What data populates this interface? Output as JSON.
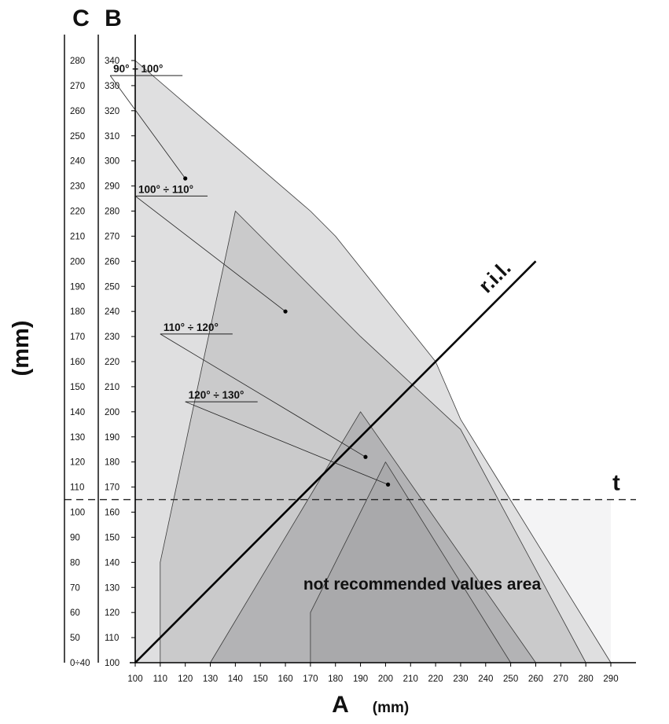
{
  "chart_data": {
    "type": "area",
    "xlabel": "A",
    "xunit": "(mm)",
    "ylabel_left_inner": "B",
    "ylabel_left_outer": "C",
    "yunit": "(mm)",
    "xlim": [
      100,
      290
    ],
    "ylim_B": [
      100,
      340
    ],
    "x_ticks": [
      "100",
      "110",
      "120",
      "130",
      "140",
      "150",
      "160",
      "170",
      "180",
      "190",
      "200",
      "210",
      "220",
      "230",
      "240",
      "250",
      "260",
      "270",
      "280",
      "290"
    ],
    "b_ticks": [
      "100",
      "110",
      "120",
      "130",
      "140",
      "150",
      "160",
      "170",
      "180",
      "190",
      "200",
      "210",
      "220",
      "230",
      "240",
      "250",
      "260",
      "270",
      "280",
      "290",
      "300",
      "310",
      "320",
      "330",
      "340"
    ],
    "c_ticks": [
      {
        "label": "0÷40",
        "b": 100
      },
      {
        "label": "50",
        "b": 110
      },
      {
        "label": "60",
        "b": 120
      },
      {
        "label": "70",
        "b": 130
      },
      {
        "label": "80",
        "b": 140
      },
      {
        "label": "90",
        "b": 150
      },
      {
        "label": "100",
        "b": 160
      },
      {
        "label": "110",
        "b": 170
      },
      {
        "label": "120",
        "b": 180
      },
      {
        "label": "130",
        "b": 190
      },
      {
        "label": "140",
        "b": 200
      },
      {
        "label": "150",
        "b": 210
      },
      {
        "label": "160",
        "b": 220
      },
      {
        "label": "170",
        "b": 230
      },
      {
        "label": "180",
        "b": 240
      },
      {
        "label": "190",
        "b": 250
      },
      {
        "label": "200",
        "b": 260
      },
      {
        "label": "210",
        "b": 270
      },
      {
        "label": "220",
        "b": 280
      },
      {
        "label": "230",
        "b": 290
      },
      {
        "label": "240",
        "b": 300
      },
      {
        "label": "250",
        "b": 310
      },
      {
        "label": "260",
        "b": 320
      },
      {
        "label": "270",
        "b": 330
      },
      {
        "label": "280",
        "b": 340
      }
    ],
    "regions": [
      {
        "name": "90° ÷ 100°",
        "color": "#dfdfe0",
        "points": [
          [
            100,
            100
          ],
          [
            100,
            340
          ],
          [
            170,
            280
          ],
          [
            180,
            270
          ],
          [
            200,
            245
          ],
          [
            220,
            220
          ],
          [
            230,
            197
          ],
          [
            290,
            100
          ]
        ],
        "dot": [
          120,
          293
        ],
        "label_at": [
          90,
          334
        ]
      },
      {
        "name": "100° ÷ 110°",
        "color": "#cacacb",
        "points": [
          [
            110,
            100
          ],
          [
            110,
            140
          ],
          [
            140,
            280
          ],
          [
            190,
            230
          ],
          [
            230,
            193
          ],
          [
            280,
            100
          ]
        ],
        "dot": [
          160,
          240
        ],
        "label_at": [
          100,
          286
        ]
      },
      {
        "name": "110° ÷ 120°",
        "color": "#b3b3b5",
        "points": [
          [
            130,
            100
          ],
          [
            190,
            200
          ],
          [
            260,
            100
          ]
        ],
        "dot": [
          192,
          182
        ],
        "label_at": [
          110,
          231
        ]
      },
      {
        "name": "120° ÷ 130°",
        "color": "#a9a9ab",
        "points": [
          [
            170,
            100
          ],
          [
            170,
            120
          ],
          [
            200,
            180
          ],
          [
            250,
            100
          ]
        ],
        "dot": [
          201,
          171
        ],
        "label_at": [
          120,
          204
        ]
      }
    ],
    "reference_lines": [
      {
        "name": "r.i.l.",
        "style": "solid",
        "from": [
          100,
          100
        ],
        "to": [
          260,
          260
        ]
      },
      {
        "name": "t",
        "style": "dashed",
        "b": 165
      }
    ],
    "annotation": "not recommended values area",
    "not_recommended_below_b": 165,
    "not_recommended_color": "#f4f4f5"
  }
}
